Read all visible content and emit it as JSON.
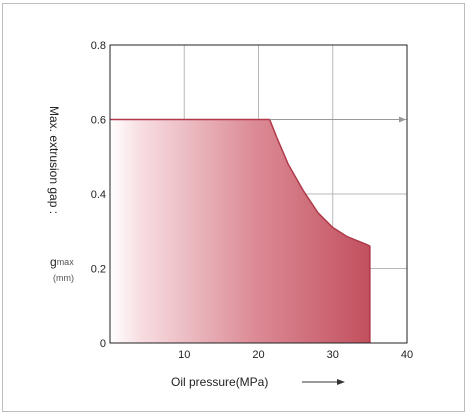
{
  "chart_data": {
    "type": "area",
    "xlabel": "Oil pressure(MPa)",
    "ylabel": "Max. extrusion gap :",
    "ylabel_symbol": "g",
    "ylabel_symbol_sub": "max",
    "ylabel_unit": "(mm)",
    "xlim": [
      0,
      40
    ],
    "ylim": [
      0,
      0.8
    ],
    "x_ticks": [
      "10",
      "20",
      "30",
      "40"
    ],
    "y_ticks": [
      "0",
      "0.2",
      "0.4",
      "0.6",
      "0.8"
    ],
    "x_tick_values": [
      10,
      20,
      30,
      40
    ],
    "y_tick_values": [
      0,
      0.2,
      0.4,
      0.6,
      0.8
    ],
    "grid": true,
    "series": [
      {
        "x": [
          0,
          21.5,
          22.5,
          24,
          26,
          28,
          30,
          32,
          34.5,
          35,
          35
        ],
        "y": [
          0.6,
          0.6,
          0.55,
          0.48,
          0.41,
          0.35,
          0.31,
          0.285,
          0.265,
          0.26,
          0
        ]
      }
    ],
    "colors": {
      "fill_dark": "#c2505e",
      "fill_light": "#ffffff",
      "edge": "#b03a4a",
      "grid": "#b8b8b8",
      "axis": "#222222"
    }
  }
}
